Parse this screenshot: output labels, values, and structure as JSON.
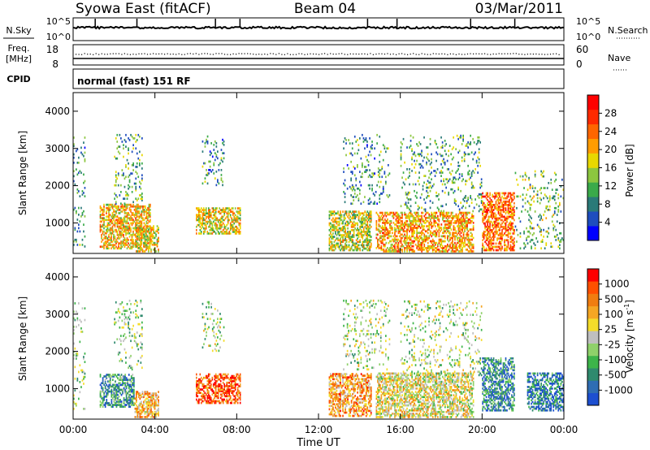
{
  "header": {
    "station": "Syowa East (fitACF)",
    "beam": "Beam 04",
    "date": "03/Mar/2011"
  },
  "top_panels": {
    "nsky_label": "N.Sky",
    "nsky_ticks": [
      "10^5",
      "10^0"
    ],
    "nsearch_label": "N.Search",
    "nsearch_ticks": [
      "10^5",
      "10^0"
    ],
    "freq_label": "Freq.",
    "freq_unit": "[MHz]",
    "freq_ticks": [
      "18",
      "8"
    ],
    "nave_label": "Nave",
    "nave_ticks": [
      "60",
      "0"
    ],
    "cpid_label": "CPID",
    "cpid_text": "normal (fast) 151 RF"
  },
  "x_axis": {
    "label": "Time UT",
    "ticks": [
      "00:00",
      "04:00",
      "08:00",
      "12:00",
      "16:00",
      "20:00",
      "00:00"
    ]
  },
  "chart_data": [
    {
      "type": "heatmap",
      "title": "",
      "ylabel": "Slant Range [km]",
      "xlabel": "",
      "xlim": [
        0,
        24
      ],
      "ylim": [
        180,
        4500
      ],
      "yticks": [
        "1000",
        "2000",
        "3000",
        "4000"
      ],
      "colorbar": {
        "label": "Power [dB]",
        "ticks": [
          "4",
          "8",
          "12",
          "16",
          "20",
          "24",
          "28"
        ],
        "colors": [
          "#0000ff",
          "#1e4dbe",
          "#2a7a78",
          "#3aaa4a",
          "#8cc63f",
          "#e8d800",
          "#ff9c00",
          "#ff6600",
          "#ff2a00",
          "#ff0000"
        ]
      },
      "echo_regions": [
        {
          "t": [
            0.0,
            0.6
          ],
          "r": [
            350,
            3300
          ],
          "level": 0.3
        },
        {
          "t": [
            1.3,
            3.8
          ],
          "r": [
            300,
            1500
          ],
          "level": 0.6
        },
        {
          "t": [
            2.0,
            3.4
          ],
          "r": [
            1500,
            3350
          ],
          "level": 0.35
        },
        {
          "t": [
            3.0,
            4.2
          ],
          "r": [
            220,
            900
          ],
          "level": 0.55
        },
        {
          "t": [
            6.0,
            8.2
          ],
          "r": [
            700,
            1400
          ],
          "level": 0.55
        },
        {
          "t": [
            6.3,
            7.4
          ],
          "r": [
            2000,
            3350
          ],
          "level": 0.3
        },
        {
          "t": [
            12.5,
            14.6
          ],
          "r": [
            250,
            1300
          ],
          "level": 0.5
        },
        {
          "t": [
            13.2,
            15.5
          ],
          "r": [
            1500,
            3350
          ],
          "level": 0.3
        },
        {
          "t": [
            14.8,
            19.6
          ],
          "r": [
            220,
            1300
          ],
          "level": 0.65
        },
        {
          "t": [
            16.0,
            20.0
          ],
          "r": [
            1300,
            3350
          ],
          "level": 0.35
        },
        {
          "t": [
            20.0,
            21.6
          ],
          "r": [
            250,
            1800
          ],
          "level": 0.75
        },
        {
          "t": [
            21.6,
            24.0
          ],
          "r": [
            300,
            2400
          ],
          "level": 0.4
        }
      ]
    },
    {
      "type": "heatmap",
      "title": "",
      "ylabel": "Slant Range [km]",
      "xlabel": "Time UT",
      "xlim": [
        0,
        24
      ],
      "ylim": [
        180,
        4500
      ],
      "yticks": [
        "1000",
        "2000",
        "3000",
        "4000"
      ],
      "colorbar": {
        "label": "Velocity [m s^-1]",
        "ticks": [
          "1000",
          "500",
          "100",
          "25",
          "-25",
          "-100",
          "-500",
          "-1000"
        ],
        "colors": [
          "#1d4fd0",
          "#2f6db3",
          "#2f8a6e",
          "#3db44a",
          "#8fd16a",
          "#bfbfbf",
          "#f4dc2a",
          "#f5a623",
          "#f07d10",
          "#ff5000",
          "#ff0000"
        ]
      },
      "echo_regions": [
        {
          "t": [
            0.0,
            0.6
          ],
          "r": [
            350,
            3300
          ],
          "level": 0.4
        },
        {
          "t": [
            1.3,
            3.0
          ],
          "r": [
            500,
            1400
          ],
          "level": 0.25
        },
        {
          "t": [
            2.0,
            3.4
          ],
          "r": [
            1500,
            3350
          ],
          "level": 0.4
        },
        {
          "t": [
            3.0,
            4.2
          ],
          "r": [
            220,
            900
          ],
          "level": 0.65
        },
        {
          "t": [
            6.0,
            8.2
          ],
          "r": [
            600,
            1400
          ],
          "level": 0.85
        },
        {
          "t": [
            6.3,
            7.4
          ],
          "r": [
            2000,
            3350
          ],
          "level": 0.45
        },
        {
          "t": [
            12.5,
            14.6
          ],
          "r": [
            250,
            1400
          ],
          "level": 0.7
        },
        {
          "t": [
            13.2,
            15.5
          ],
          "r": [
            1500,
            3350
          ],
          "level": 0.45
        },
        {
          "t": [
            14.8,
            19.6
          ],
          "r": [
            220,
            1400
          ],
          "level": 0.55
        },
        {
          "t": [
            16.0,
            20.0
          ],
          "r": [
            1300,
            3350
          ],
          "level": 0.45
        },
        {
          "t": [
            20.0,
            21.6
          ],
          "r": [
            400,
            1800
          ],
          "level": 0.2
        },
        {
          "t": [
            22.2,
            24.0
          ],
          "r": [
            400,
            1400
          ],
          "level": 0.15
        }
      ]
    }
  ]
}
